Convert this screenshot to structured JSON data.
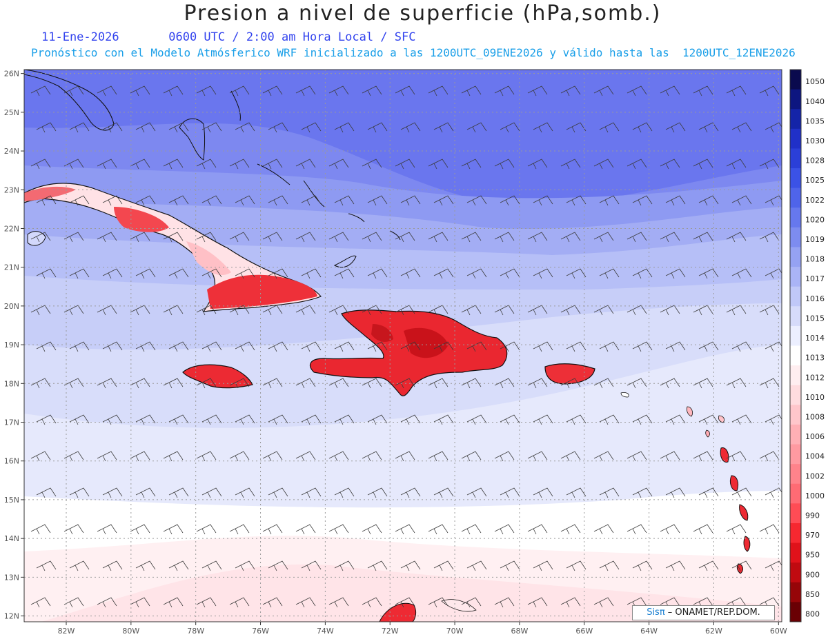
{
  "header": {
    "title": "Presion a nivel de superficie (hPa,somb.)",
    "date": "11-Ene-2026",
    "time": "0600 UTC / 2:00 am Hora Local / SFC",
    "forecast_line": "Pronóstico con el Modelo Atmósferico WRF inicializado a las 1200UTC_09ENE2026 y válido hasta las  1200UTC_12ENE2026"
  },
  "map": {
    "lon_labels": [
      "82W",
      "80W",
      "78W",
      "76W",
      "74W",
      "72W",
      "70W",
      "68W",
      "66W",
      "64W",
      "62W",
      "60W"
    ],
    "lat_labels": [
      "26N",
      "25N",
      "24N",
      "23N",
      "22N",
      "21N",
      "20N",
      "19N",
      "18N",
      "17N",
      "16N",
      "15N",
      "14N",
      "13N",
      "12N"
    ],
    "lon_values": [
      -82,
      -80,
      -78,
      -76,
      -74,
      -72,
      -70,
      -68,
      -66,
      -64,
      -62,
      -60
    ],
    "lat_values": [
      26,
      25,
      24,
      23,
      22,
      21,
      20,
      19,
      18,
      17,
      16,
      15,
      14,
      13,
      12
    ],
    "extent": {
      "lon_min": -83.3,
      "lon_max": -59.9,
      "lat_min": 11.85,
      "lat_max": 26.1
    }
  },
  "legend": {
    "levels": [
      "1050",
      "1040",
      "1035",
      "1030",
      "1028",
      "1025",
      "1022",
      "1020",
      "1019",
      "1018",
      "1017",
      "1016",
      "1015",
      "1014",
      "1013",
      "1012",
      "1010",
      "1008",
      "1006",
      "1004",
      "1002",
      "1000",
      "990",
      "970",
      "950",
      "900",
      "850",
      "800"
    ],
    "colors": [
      "#0a0a4e",
      "#0d1680",
      "#1424a8",
      "#2030c8",
      "#2b3fd8",
      "#3b52e6",
      "#4f64ea",
      "#6678ee",
      "#7d8cf0",
      "#95a2f3",
      "#aab4f6",
      "#c0c8f8",
      "#d6dbfa",
      "#ecefff",
      "#ffffff",
      "#ffeef0",
      "#ffdcdf",
      "#ffc6cb",
      "#ffafb5",
      "#ff9aa1",
      "#ff838b",
      "#ff6b74",
      "#ff4c55",
      "#f62830",
      "#e0121a",
      "#c00a10",
      "#960508",
      "#6a0004"
    ]
  },
  "credit": {
    "sis": "Sisπ",
    "text": " – ONAMET/REP.DOM."
  }
}
